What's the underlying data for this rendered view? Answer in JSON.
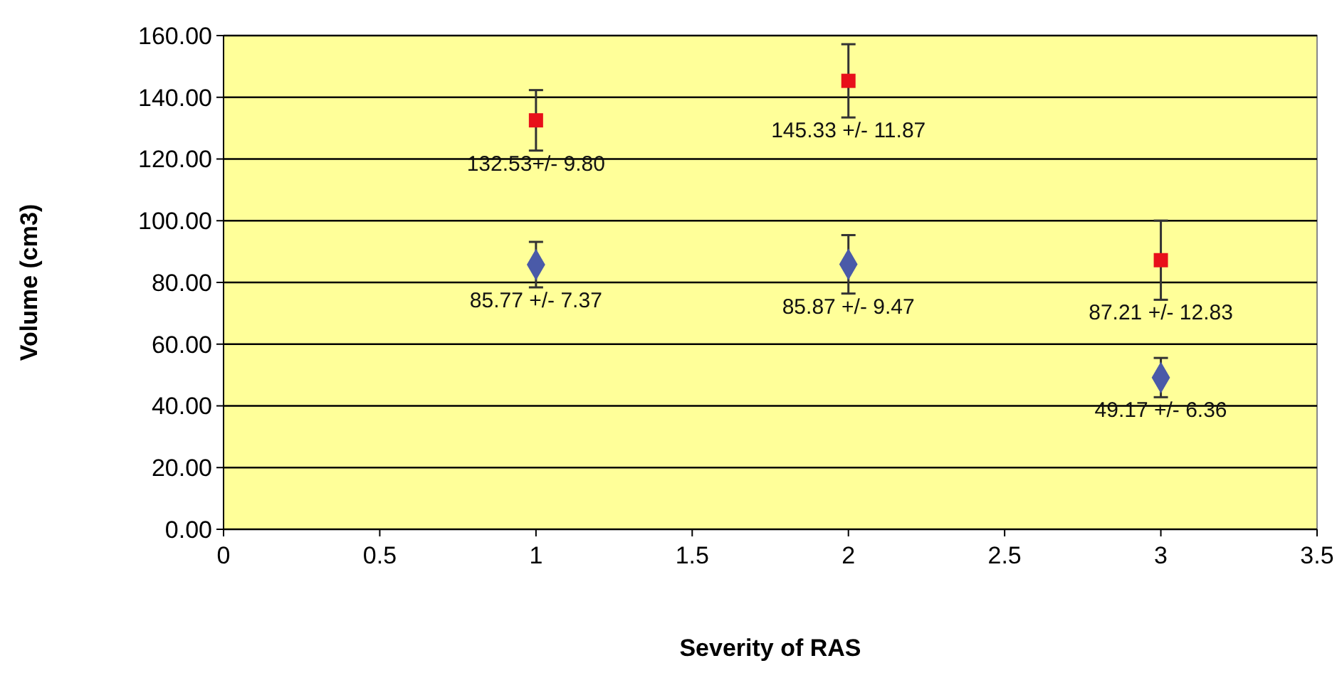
{
  "chart_data": {
    "type": "scatter",
    "xlabel": "Severity of RAS",
    "ylabel": "Volume (cm3)",
    "xlim": [
      0,
      3.5
    ],
    "xticks": [
      0,
      0.5,
      1,
      1.5,
      2,
      2.5,
      3,
      3.5
    ],
    "ylim": [
      0,
      160
    ],
    "yticks": [
      {
        "value": 0,
        "label": "0.00"
      },
      {
        "value": 20,
        "label": "20.00"
      },
      {
        "value": 40,
        "label": "40.00"
      },
      {
        "value": 60,
        "label": "60.00"
      },
      {
        "value": 80,
        "label": "80.00"
      },
      {
        "value": 100,
        "label": "100.00"
      },
      {
        "value": 120,
        "label": "120.00"
      },
      {
        "value": 140,
        "label": "140.00"
      },
      {
        "value": 160,
        "label": "160.00"
      }
    ],
    "grid": "y",
    "series": [
      {
        "color": "#e8101a",
        "marker": "square",
        "x": [
          1,
          2,
          3
        ],
        "values": [
          132.53,
          145.33,
          87.21
        ],
        "errors": [
          9.8,
          11.87,
          12.83
        ],
        "value_labels": [
          "132.53+/- 9.80",
          "145.33 +/- 11.87",
          "87.21 +/- 12.83"
        ]
      },
      {
        "color": "#4a5aa8",
        "marker": "diamond",
        "x": [
          1,
          2,
          3
        ],
        "values": [
          85.77,
          85.87,
          49.17
        ],
        "errors": [
          7.37,
          9.47,
          6.36
        ],
        "value_labels": [
          "85.77 +/- 7.37",
          "85.87 +/- 9.47",
          "49.17 +/- 6.36"
        ]
      }
    ]
  }
}
